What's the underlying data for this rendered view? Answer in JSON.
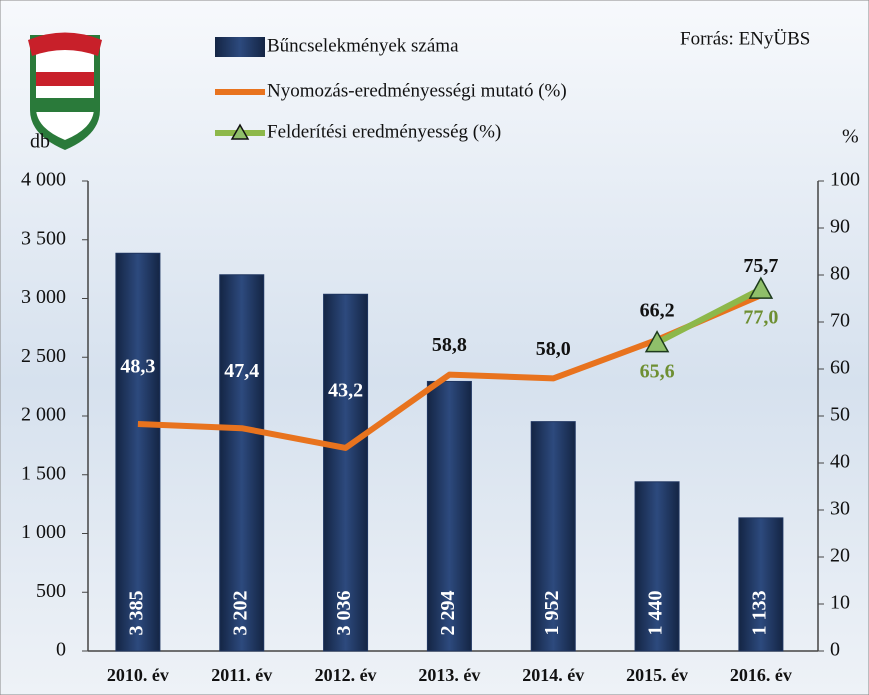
{
  "chart_data": {
    "type": "bar",
    "annotation": "Forrás: ENyÜBS",
    "ylabel": "db",
    "y2label": "%",
    "categories": [
      "2010. év",
      "2011. év",
      "2012. év",
      "2013. év",
      "2014. év",
      "2015. év",
      "2016. év"
    ],
    "series": [
      {
        "name": "Bűncselekmények száma",
        "type": "bar",
        "color": "#1f3560",
        "values": [
          3385,
          3202,
          3036,
          2294,
          1952,
          1440,
          1133
        ],
        "value_labels": [
          "3 385",
          "3 202",
          "3 036",
          "2 294",
          "1 952",
          "1 440",
          "1 133"
        ]
      },
      {
        "name": "Nyomozás-eredményességi mutató (%)",
        "type": "line",
        "axis": "y2",
        "color": "#e8731e",
        "values": [
          48.3,
          47.4,
          43.2,
          58.8,
          58.0,
          66.2,
          75.7
        ],
        "value_labels": [
          "48,3",
          "47,4",
          "43,2",
          "58,8",
          "58,0",
          "66,2",
          "75,7"
        ]
      },
      {
        "name": "Felderítési eredményesség (%)",
        "type": "line",
        "axis": "y2",
        "color": "#8db84a",
        "marker": "triangle",
        "values": [
          null,
          null,
          null,
          null,
          null,
          65.6,
          77.0
        ],
        "value_labels": [
          null,
          null,
          null,
          null,
          null,
          "65,6",
          "77,0"
        ]
      }
    ],
    "ylim": [
      0,
      4000
    ],
    "yticks": [
      0,
      500,
      {
        "value": 1000,
        "label": "1 000"
      },
      {
        "value": 1500,
        "label": "1 500"
      },
      {
        "value": 2000,
        "label": "2 000"
      },
      {
        "value": 2500,
        "label": "2 500"
      },
      {
        "value": 3000,
        "label": "3 000"
      },
      {
        "value": 3500,
        "label": "3 500"
      },
      {
        "value": 4000,
        "label": "4 000"
      }
    ],
    "y2lim": [
      0,
      100
    ],
    "y2ticks": [
      0,
      10,
      20,
      30,
      40,
      50,
      60,
      70,
      80,
      90,
      100
    ]
  }
}
